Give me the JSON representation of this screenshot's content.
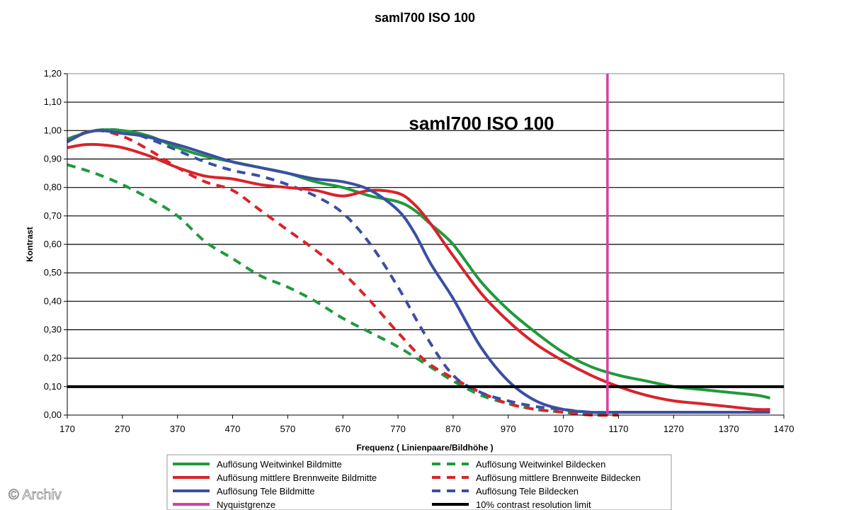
{
  "chart_data": {
    "type": "line",
    "title": "saml700 ISO 100",
    "inner_title": "saml700 ISO 100",
    "xlabel": "Frequenz ( Linienpaare/Bildhöhe )",
    "ylabel": "Kontrast",
    "xlim": [
      170,
      1470
    ],
    "ylim": [
      0,
      1.2
    ],
    "x_ticks": [
      170,
      270,
      370,
      470,
      570,
      670,
      770,
      870,
      970,
      1070,
      1170,
      1270,
      1370,
      1470
    ],
    "y_ticks": [
      "0,00",
      "0,10",
      "0,20",
      "0,30",
      "0,40",
      "0,50",
      "0,60",
      "0,70",
      "0,80",
      "0,90",
      "1,00",
      "1,10",
      "1,20"
    ],
    "grid": "horizontal",
    "legend_position": "bottom",
    "series": [
      {
        "name": "Auflösung Weitwinkel Bildmitte",
        "color": "#1f9a3c",
        "dash": false,
        "x": [
          170,
          220,
          270,
          320,
          370,
          420,
          470,
          520,
          570,
          620,
          670,
          720,
          770,
          800,
          830,
          870,
          920,
          970,
          1020,
          1070,
          1120,
          1170,
          1220,
          1270,
          1320,
          1370,
          1420,
          1445
        ],
        "y": [
          0.97,
          1.0,
          1.0,
          0.98,
          0.94,
          0.91,
          0.89,
          0.87,
          0.85,
          0.82,
          0.8,
          0.77,
          0.75,
          0.72,
          0.67,
          0.6,
          0.47,
          0.37,
          0.29,
          0.22,
          0.17,
          0.14,
          0.12,
          0.1,
          0.09,
          0.08,
          0.07,
          0.06
        ]
      },
      {
        "name": "Auflösung mittlere Brennweite Bildmitte",
        "color": "#d9232b",
        "dash": false,
        "x": [
          170,
          200,
          230,
          270,
          320,
          370,
          420,
          470,
          520,
          570,
          620,
          670,
          720,
          770,
          800,
          830,
          870,
          920,
          970,
          1020,
          1070,
          1120,
          1170,
          1220,
          1270,
          1320,
          1370,
          1420,
          1445
        ],
        "y": [
          0.94,
          0.95,
          0.95,
          0.94,
          0.91,
          0.87,
          0.84,
          0.83,
          0.81,
          0.8,
          0.79,
          0.77,
          0.79,
          0.78,
          0.74,
          0.67,
          0.56,
          0.43,
          0.33,
          0.25,
          0.19,
          0.14,
          0.1,
          0.07,
          0.05,
          0.04,
          0.03,
          0.02,
          0.02
        ]
      },
      {
        "name": "Auflösung Tele Bildmitte",
        "color": "#3a4fa3",
        "dash": false,
        "x": [
          170,
          200,
          230,
          270,
          310,
          370,
          420,
          470,
          520,
          570,
          620,
          670,
          720,
          770,
          800,
          830,
          870,
          920,
          970,
          1020,
          1070,
          1120,
          1170,
          1220,
          1270,
          1320,
          1370,
          1420,
          1445
        ],
        "y": [
          0.96,
          0.99,
          1.0,
          0.99,
          0.98,
          0.95,
          0.92,
          0.89,
          0.87,
          0.85,
          0.83,
          0.82,
          0.79,
          0.72,
          0.64,
          0.53,
          0.41,
          0.24,
          0.12,
          0.05,
          0.02,
          0.01,
          0.01,
          0.01,
          0.01,
          0.01,
          0.01,
          0.01,
          0.01
        ]
      },
      {
        "name": "Nyquistgrenze",
        "color": "#d63ea2",
        "dash": false,
        "x": [
          1150,
          1150
        ],
        "y": [
          0,
          1.2
        ]
      },
      {
        "name": "Auflösung Weitwinkel Bildecken",
        "color": "#1f9a3c",
        "dash": true,
        "x": [
          170,
          220,
          270,
          320,
          370,
          420,
          470,
          520,
          570,
          620,
          670,
          720,
          770,
          820,
          870,
          920,
          970,
          1020,
          1070,
          1120,
          1170
        ],
        "y": [
          0.88,
          0.85,
          0.81,
          0.76,
          0.7,
          0.61,
          0.55,
          0.49,
          0.45,
          0.4,
          0.34,
          0.29,
          0.24,
          0.18,
          0.12,
          0.07,
          0.04,
          0.02,
          0.01,
          0.0,
          0.0
        ]
      },
      {
        "name": "Auflösung mittlere Brennweite Bildecken",
        "color": "#d9232b",
        "dash": true,
        "x": [
          170,
          220,
          270,
          320,
          370,
          420,
          470,
          520,
          570,
          620,
          670,
          720,
          770,
          820,
          870,
          920,
          970,
          1020,
          1070,
          1120,
          1170
        ],
        "y": [
          0.97,
          1.0,
          0.98,
          0.93,
          0.87,
          0.82,
          0.79,
          0.72,
          0.65,
          0.58,
          0.5,
          0.4,
          0.29,
          0.19,
          0.13,
          0.08,
          0.04,
          0.02,
          0.01,
          0.0,
          0.0
        ]
      },
      {
        "name": "Auflösung Tele Bildecken",
        "color": "#3a4fa3",
        "dash": true,
        "x": [
          170,
          220,
          270,
          320,
          370,
          420,
          470,
          520,
          570,
          620,
          670,
          720,
          770,
          820,
          870,
          920,
          970,
          1020,
          1070,
          1120,
          1170,
          1270,
          1370,
          1445
        ],
        "y": [
          0.97,
          1.0,
          1.0,
          0.97,
          0.93,
          0.89,
          0.86,
          0.84,
          0.81,
          0.77,
          0.71,
          0.6,
          0.45,
          0.28,
          0.14,
          0.08,
          0.05,
          0.03,
          0.02,
          0.01,
          0.01,
          0.01,
          0.01,
          0.01
        ]
      },
      {
        "name": "10% contrast resolution limit",
        "color": "#000000",
        "dash": false,
        "x": [
          170,
          1470
        ],
        "y": [
          0.1,
          0.1
        ]
      }
    ],
    "legend_rows": [
      [
        "Auflösung Weitwinkel Bildmitte",
        "Auflösung Weitwinkel Bildecken"
      ],
      [
        "Auflösung mittlere Brennweite Bildmitte",
        "Auflösung mittlere Brennweite Bildecken"
      ],
      [
        "Auflösung Tele Bildmitte",
        "Auflösung Tele Bildecken"
      ],
      [
        "Nyquistgrenze",
        "10% contrast resolution limit"
      ]
    ]
  },
  "watermark": "© Archiv"
}
